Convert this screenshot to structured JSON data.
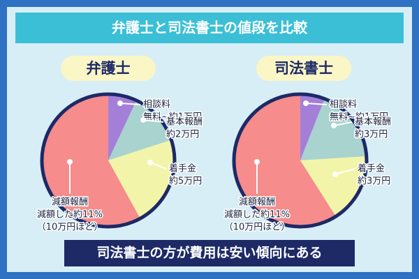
{
  "header": {
    "title": "弁護士と司法書士の値段を比較"
  },
  "footer": "司法書士の方が費用は安い傾向にある",
  "chart_data": [
    {
      "type": "pie",
      "title": "弁護士",
      "categories": [
        "相談料",
        "基本報酬",
        "着手金",
        "減額報酬"
      ],
      "details": [
        [
          "無料~約1万円"
        ],
        [
          "約2万円"
        ],
        [
          "約5万円"
        ],
        [
          "減額した約11%",
          "（10万円ほど）"
        ]
      ],
      "values": [
        7,
        13,
        22,
        58
      ],
      "colors": [
        "#a47fd8",
        "#a8d3cf",
        "#f2f5a9",
        "#f68c8c"
      ]
    },
    {
      "type": "pie",
      "title": "司法書士",
      "categories": [
        "相談料",
        "基本報酬",
        "着手金",
        "減額報酬"
      ],
      "details": [
        [
          "無料~約1万円"
        ],
        [
          "約3万円"
        ],
        [
          "約3万円"
        ],
        [
          "減額した約11%",
          "（10万円ほど）"
        ]
      ],
      "values": [
        6,
        18,
        17,
        59
      ],
      "colors": [
        "#a47fd8",
        "#a8d3cf",
        "#f2f5a9",
        "#f68c8c"
      ]
    }
  ]
}
